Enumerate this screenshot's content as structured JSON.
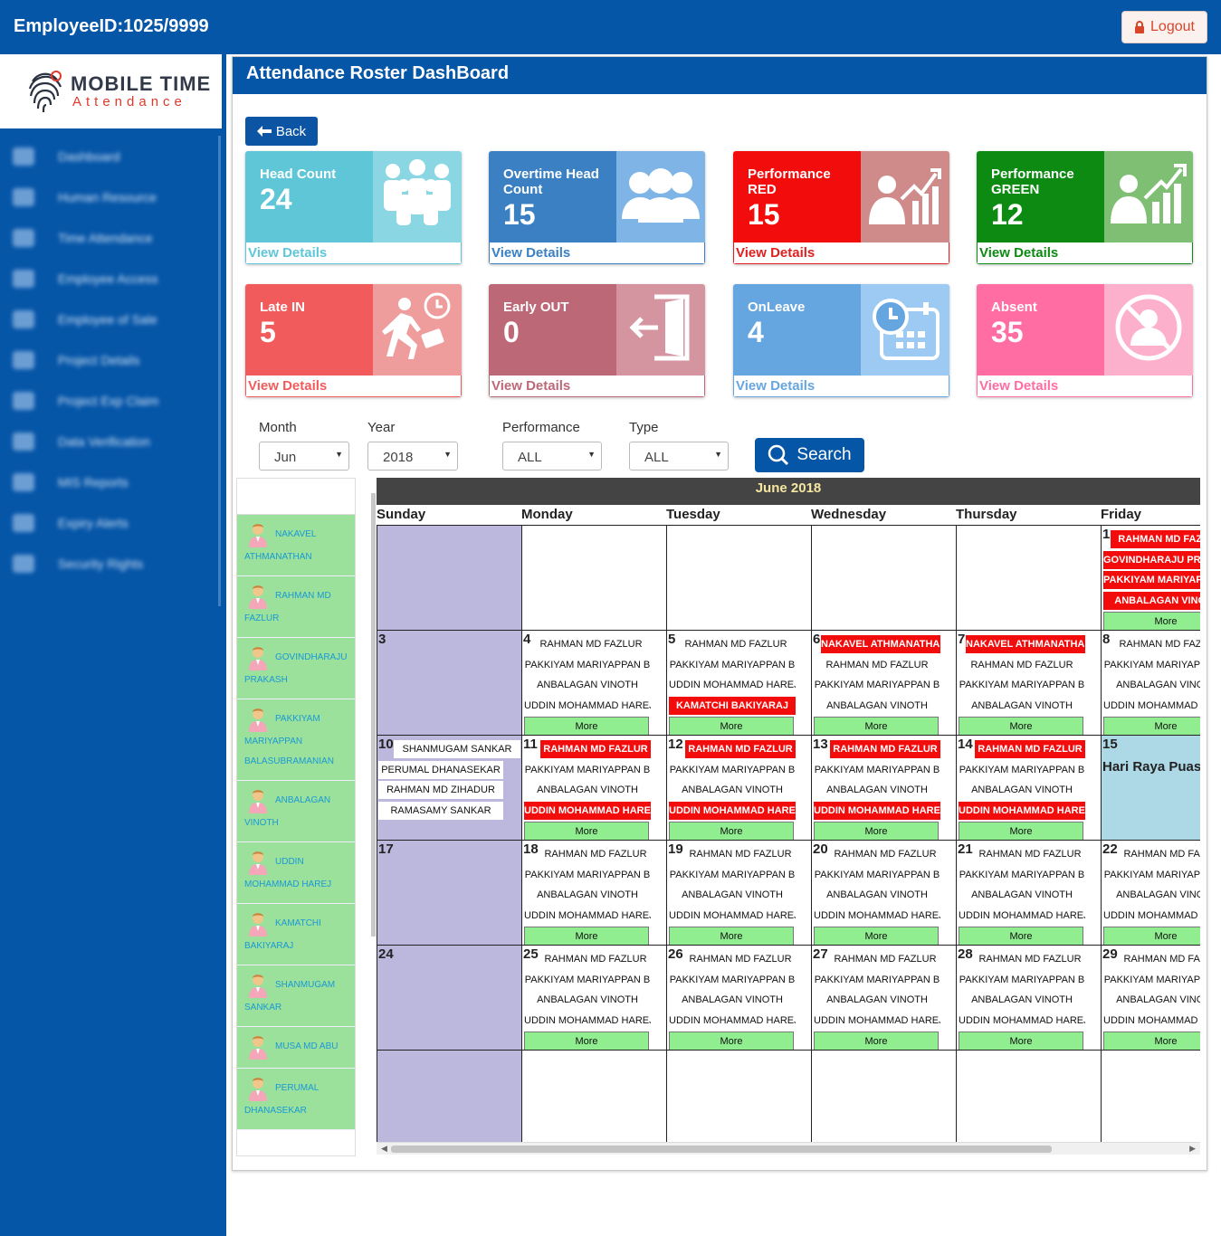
{
  "header": {
    "employee_id": "EmployeeID:1025/9999",
    "logout_label": "Logout"
  },
  "logo": {
    "line1": "MOBILE TIME",
    "line2": "Attendance"
  },
  "sidebar": {
    "items": [
      {
        "label": "Dashboard",
        "icon": "dashboard-icon"
      },
      {
        "label": "Human Resource",
        "icon": "home-icon"
      },
      {
        "label": "Time Attendance",
        "icon": "clock-icon"
      },
      {
        "label": "Employee Access",
        "icon": "user-icon"
      },
      {
        "label": "Employee of Sale",
        "icon": "dollar-icon"
      },
      {
        "label": "Project Details",
        "icon": "project-icon"
      },
      {
        "label": "Project Exp Claim",
        "icon": "claim-icon"
      },
      {
        "label": "Data Verification",
        "icon": "document-icon"
      },
      {
        "label": "MIS Reports",
        "icon": "report-icon"
      },
      {
        "label": "Expiry Alerts",
        "icon": "alert-icon"
      },
      {
        "label": "Security Rights",
        "icon": "lock-icon"
      }
    ]
  },
  "page": {
    "title": "Attendance Roster DashBoard",
    "back_label": "Back"
  },
  "cards": [
    {
      "title": "Head Count",
      "value": "24",
      "footer": "View Details",
      "icon": "team-icon",
      "left": "#5ec6d6",
      "right": "#8ad7e3",
      "foot": "#5ec6d6"
    },
    {
      "title": "Overtime Head Count",
      "value": "15",
      "footer": "View Details",
      "icon": "group-icon",
      "left": "#3a80c2",
      "right": "#7fb4e6",
      "foot": "#3a80c2"
    },
    {
      "title": "Performance RED",
      "value": "15",
      "footer": "View Details",
      "icon": "performance-chart-icon",
      "left": "#f20c0c",
      "right": "#cf8a8a",
      "foot": "#e02020"
    },
    {
      "title": "Performance GREEN",
      "value": "12",
      "footer": "View Details",
      "icon": "growth-chart-icon",
      "left": "#0c8a12",
      "right": "#7fbf73",
      "foot": "#0c8a12"
    },
    {
      "title": "Late IN",
      "value": "5",
      "footer": "View Details",
      "icon": "late-runner-icon",
      "left": "#f25b5b",
      "right": "#ee9c9c",
      "foot": "#f25b5b"
    },
    {
      "title": "Early OUT",
      "value": "0",
      "footer": "View Details",
      "icon": "exit-door-icon",
      "left": "#bd6877",
      "right": "#d494a0",
      "foot": "#bd6877"
    },
    {
      "title": "OnLeave",
      "value": "4",
      "footer": "View Details",
      "icon": "calendar-clock-icon",
      "left": "#66a6e0",
      "right": "#9dcaf2",
      "foot": "#66a6e0"
    },
    {
      "title": "Absent",
      "value": "35",
      "footer": "View Details",
      "icon": "absent-user-icon",
      "left": "#ff6da2",
      "right": "#fdb0cc",
      "foot": "#ff6da2"
    }
  ],
  "filters": {
    "month": {
      "label": "Month",
      "value": "Jun"
    },
    "year": {
      "label": "Year",
      "value": "2018"
    },
    "performance": {
      "label": "Performance",
      "value": "ALL"
    },
    "type": {
      "label": "Type",
      "value": "ALL"
    },
    "search_label": "Search"
  },
  "employees": [
    {
      "first": "NAKAVEL",
      "second": "ATHMANATHAN"
    },
    {
      "first": "RAHMAN MD",
      "second": "FAZLUR"
    },
    {
      "first": "GOVINDHARAJU",
      "second": "PRAKASH"
    },
    {
      "first": "PAKKIYAM",
      "second": "MARIYAPPAN BALASUBRAMANIAN"
    },
    {
      "first": "ANBALAGAN",
      "second": "VINOTH"
    },
    {
      "first": "UDDIN",
      "second": "MOHAMMAD HAREJ"
    },
    {
      "first": "KAMATCHI",
      "second": "BAKIYARAJ"
    },
    {
      "first": "SHANMUGAM",
      "second": "SANKAR"
    },
    {
      "first": "MUSA MD ABU",
      "second": ""
    },
    {
      "first": "PERUMAL",
      "second": "DHANASEKAR"
    }
  ],
  "calendar": {
    "title": "June 2018",
    "days": [
      "Sunday",
      "Monday",
      "Tuesday",
      "Wednesday",
      "Thursday",
      "Friday"
    ],
    "more_label": "More",
    "holiday": "Hari Raya Puasa",
    "weeks": [
      [
        {
          "day": "",
          "type": "sun",
          "events": []
        },
        {
          "day": "",
          "events": []
        },
        {
          "day": "",
          "events": []
        },
        {
          "day": "",
          "events": []
        },
        {
          "day": "",
          "events": []
        },
        {
          "day": "1",
          "events": [
            {
              "t": "RAHMAN MD FAZLUR",
              "r": true
            },
            {
              "t": "GOVINDHARAJU PRAKASH",
              "r": true
            },
            {
              "t": "PAKKIYAM MARIYAPPAN B",
              "r": true
            },
            {
              "t": "ANBALAGAN VINOTH",
              "r": true
            }
          ],
          "more": true
        }
      ],
      [
        {
          "day": "3",
          "type": "sun",
          "events": []
        },
        {
          "day": "4",
          "events": [
            {
              "t": "RAHMAN MD FAZLUR"
            },
            {
              "t": "PAKKIYAM MARIYAPPAN B"
            },
            {
              "t": "ANBALAGAN VINOTH"
            },
            {
              "t": "UDDIN MOHAMMAD HAREJ"
            }
          ],
          "more": true
        },
        {
          "day": "5",
          "events": [
            {
              "t": "RAHMAN MD FAZLUR"
            },
            {
              "t": "PAKKIYAM MARIYAPPAN B"
            },
            {
              "t": "UDDIN MOHAMMAD HAREJ"
            },
            {
              "t": "KAMATCHI BAKIYARAJ",
              "r": true
            }
          ],
          "more": true
        },
        {
          "day": "6",
          "events": [
            {
              "t": "NAKAVEL ATHMANATHAN",
              "r": true
            },
            {
              "t": "RAHMAN MD FAZLUR"
            },
            {
              "t": "PAKKIYAM MARIYAPPAN B"
            },
            {
              "t": "ANBALAGAN VINOTH"
            }
          ],
          "more": true
        },
        {
          "day": "7",
          "events": [
            {
              "t": "NAKAVEL ATHMANATHAN",
              "r": true
            },
            {
              "t": "RAHMAN MD FAZLUR"
            },
            {
              "t": "PAKKIYAM MARIYAPPAN B"
            },
            {
              "t": "ANBALAGAN VINOTH"
            }
          ],
          "more": true
        },
        {
          "day": "8",
          "events": [
            {
              "t": "RAHMAN MD FAZLUR"
            },
            {
              "t": "PAKKIYAM MARIYAPPAN B"
            },
            {
              "t": "ANBALAGAN VINOTH"
            },
            {
              "t": "UDDIN MOHAMMAD HAREJ"
            }
          ],
          "more": true
        }
      ],
      [
        {
          "day": "10",
          "type": "sun",
          "events": [
            {
              "t": "SHANMUGAM SANKAR"
            },
            {
              "t": "PERUMAL DHANASEKAR"
            },
            {
              "t": "RAHMAN MD ZIHADUR"
            },
            {
              "t": "RAMASAMY SANKAR"
            }
          ]
        },
        {
          "day": "11",
          "events": [
            {
              "t": "RAHMAN MD FAZLUR",
              "r": true
            },
            {
              "t": "PAKKIYAM MARIYAPPAN B"
            },
            {
              "t": "ANBALAGAN VINOTH"
            },
            {
              "t": "UDDIN MOHAMMAD HAREJ",
              "r": true
            }
          ],
          "more": true
        },
        {
          "day": "12",
          "events": [
            {
              "t": "RAHMAN MD FAZLUR",
              "r": true
            },
            {
              "t": "PAKKIYAM MARIYAPPAN B"
            },
            {
              "t": "ANBALAGAN VINOTH"
            },
            {
              "t": "UDDIN MOHAMMAD HAREJ",
              "r": true
            }
          ],
          "more": true
        },
        {
          "day": "13",
          "events": [
            {
              "t": "RAHMAN MD FAZLUR",
              "r": true
            },
            {
              "t": "PAKKIYAM MARIYAPPAN B"
            },
            {
              "t": "ANBALAGAN VINOTH"
            },
            {
              "t": "UDDIN MOHAMMAD HAREJ",
              "r": true
            }
          ],
          "more": true
        },
        {
          "day": "14",
          "events": [
            {
              "t": "RAHMAN MD FAZLUR",
              "r": true
            },
            {
              "t": "PAKKIYAM MARIYAPPAN B"
            },
            {
              "t": "ANBALAGAN VINOTH"
            },
            {
              "t": "UDDIN MOHAMMAD HAREJ",
              "r": true
            }
          ],
          "more": true
        },
        {
          "day": "15",
          "type": "hol",
          "events": []
        }
      ],
      [
        {
          "day": "17",
          "type": "sun",
          "events": []
        },
        {
          "day": "18",
          "events": [
            {
              "t": "RAHMAN MD FAZLUR"
            },
            {
              "t": "PAKKIYAM MARIYAPPAN B"
            },
            {
              "t": "ANBALAGAN VINOTH"
            },
            {
              "t": "UDDIN MOHAMMAD HAREJ"
            }
          ],
          "more": true
        },
        {
          "day": "19",
          "events": [
            {
              "t": "RAHMAN MD FAZLUR"
            },
            {
              "t": "PAKKIYAM MARIYAPPAN B"
            },
            {
              "t": "ANBALAGAN VINOTH"
            },
            {
              "t": "UDDIN MOHAMMAD HAREJ"
            }
          ],
          "more": true
        },
        {
          "day": "20",
          "events": [
            {
              "t": "RAHMAN MD FAZLUR"
            },
            {
              "t": "PAKKIYAM MARIYAPPAN B"
            },
            {
              "t": "ANBALAGAN VINOTH"
            },
            {
              "t": "UDDIN MOHAMMAD HAREJ"
            }
          ],
          "more": true
        },
        {
          "day": "21",
          "events": [
            {
              "t": "RAHMAN MD FAZLUR"
            },
            {
              "t": "PAKKIYAM MARIYAPPAN B"
            },
            {
              "t": "ANBALAGAN VINOTH"
            },
            {
              "t": "UDDIN MOHAMMAD HAREJ"
            }
          ],
          "more": true
        },
        {
          "day": "22",
          "events": [
            {
              "t": "RAHMAN MD FAZLUR"
            },
            {
              "t": "PAKKIYAM MARIYAPPAN B"
            },
            {
              "t": "ANBALAGAN VINOTH"
            },
            {
              "t": "UDDIN MOHAMMAD HAREJ"
            }
          ],
          "more": true
        }
      ],
      [
        {
          "day": "24",
          "type": "sun",
          "events": []
        },
        {
          "day": "25",
          "events": [
            {
              "t": "RAHMAN MD FAZLUR"
            },
            {
              "t": "PAKKIYAM MARIYAPPAN B"
            },
            {
              "t": "ANBALAGAN VINOTH"
            },
            {
              "t": "UDDIN MOHAMMAD HAREJ"
            }
          ],
          "more": true
        },
        {
          "day": "26",
          "events": [
            {
              "t": "RAHMAN MD FAZLUR"
            },
            {
              "t": "PAKKIYAM MARIYAPPAN B"
            },
            {
              "t": "ANBALAGAN VINOTH"
            },
            {
              "t": "UDDIN MOHAMMAD HAREJ"
            }
          ],
          "more": true
        },
        {
          "day": "27",
          "events": [
            {
              "t": "RAHMAN MD FAZLUR"
            },
            {
              "t": "PAKKIYAM MARIYAPPAN B"
            },
            {
              "t": "ANBALAGAN VINOTH"
            },
            {
              "t": "UDDIN MOHAMMAD HAREJ"
            }
          ],
          "more": true
        },
        {
          "day": "28",
          "events": [
            {
              "t": "RAHMAN MD FAZLUR"
            },
            {
              "t": "PAKKIYAM MARIYAPPAN B"
            },
            {
              "t": "ANBALAGAN VINOTH"
            },
            {
              "t": "UDDIN MOHAMMAD HAREJ"
            }
          ],
          "more": true
        },
        {
          "day": "29",
          "events": [
            {
              "t": "RAHMAN MD FAZLUR"
            },
            {
              "t": "PAKKIYAM MARIYAPPAN B"
            },
            {
              "t": "ANBALAGAN VINOTH"
            },
            {
              "t": "UDDIN MOHAMMAD HAREJ"
            }
          ],
          "more": true
        }
      ],
      [
        {
          "day": "",
          "type": "sun",
          "events": []
        },
        {
          "day": "",
          "events": []
        },
        {
          "day": "",
          "events": []
        },
        {
          "day": "",
          "events": []
        },
        {
          "day": "",
          "events": []
        },
        {
          "day": "",
          "events": []
        }
      ]
    ]
  }
}
